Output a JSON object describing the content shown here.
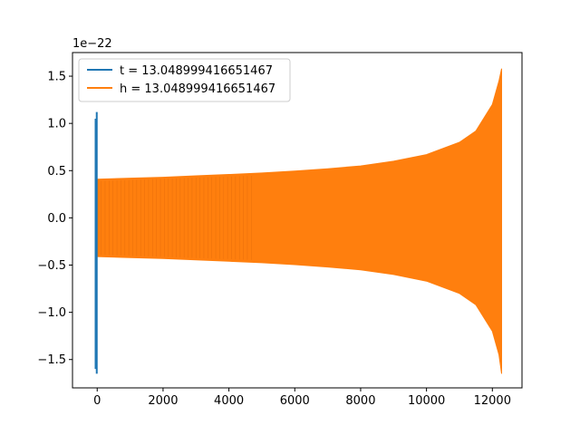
{
  "chart_data": {
    "type": "line",
    "title": "",
    "xlabel": "",
    "ylabel": "",
    "offset_label": "1e−22",
    "xlim": [
      -750,
      12900
    ],
    "ylim": [
      -1.8,
      1.75
    ],
    "x_ticks": [
      0,
      2000,
      4000,
      6000,
      8000,
      10000,
      12000
    ],
    "x_tick_labels": [
      "0",
      "2000",
      "4000",
      "6000",
      "8000",
      "10000",
      "12000"
    ],
    "y_ticks": [
      -1.5,
      -1.0,
      -0.5,
      0.0,
      0.5,
      1.0,
      1.5
    ],
    "y_tick_labels": [
      "−1.5",
      "−1.0",
      "−0.5",
      "0.0",
      "0.5",
      "1.0",
      "1.5"
    ],
    "grid": false,
    "legend_position": "top-left",
    "series": [
      {
        "name": "t = 13.048999416651467",
        "color": "#1f77b4",
        "description_points": {
          "x": [
            0,
            0,
            0,
            0
          ],
          "y": [
            1.12,
            -1.65,
            1.05,
            -1.6
          ]
        }
      },
      {
        "name": "h = 13.048999416651467",
        "color": "#ff7f0e",
        "envelope": {
          "x": [
            0,
            1000,
            2000,
            3000,
            4000,
            5000,
            6000,
            7000,
            8000,
            9000,
            10000,
            11000,
            11500,
            12000,
            12200,
            12280
          ],
          "upper": [
            0.41,
            0.42,
            0.43,
            0.445,
            0.46,
            0.475,
            0.495,
            0.52,
            0.55,
            0.6,
            0.67,
            0.8,
            0.92,
            1.2,
            1.45,
            1.58
          ],
          "lower": [
            -0.41,
            -0.42,
            -0.43,
            -0.445,
            -0.46,
            -0.475,
            -0.495,
            -0.52,
            -0.55,
            -0.6,
            -0.67,
            -0.8,
            -0.92,
            -1.2,
            -1.45,
            -1.65
          ]
        }
      }
    ]
  }
}
